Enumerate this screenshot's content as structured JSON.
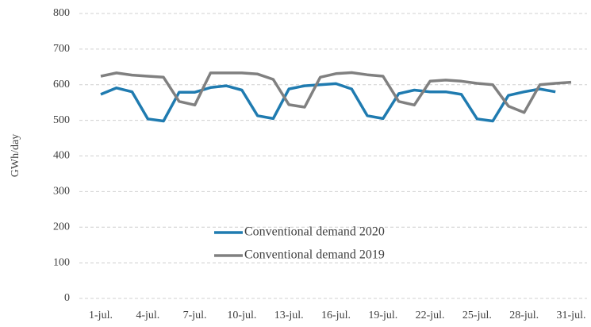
{
  "chart_data": {
    "type": "line",
    "y_label": "GWh/day",
    "categories": [
      "1-jul.",
      null,
      null,
      "4-jul.",
      null,
      null,
      "7-jul.",
      null,
      null,
      "10-jul.",
      null,
      null,
      "13-jul.",
      null,
      null,
      "16-jul.",
      null,
      null,
      "19-jul.",
      null,
      null,
      "22-jul.",
      null,
      null,
      "25-jul.",
      null,
      null,
      "28-jul.",
      null,
      null,
      "31-jul."
    ],
    "series": [
      {
        "name": "Conventional demand 2020",
        "color": "#1f7bb0",
        "values": [
          573,
          591,
          580,
          504,
          498,
          579,
          579,
          592,
          597,
          585,
          513,
          505,
          588,
          597,
          600,
          603,
          588,
          513,
          505,
          575,
          585,
          580,
          580,
          573,
          504,
          498,
          570,
          580,
          588,
          580,
          null
        ]
      },
      {
        "name": "Conventional demand 2019",
        "color": "#808080",
        "values": [
          624,
          633,
          627,
          624,
          621,
          553,
          543,
          633,
          633,
          633,
          630,
          615,
          544,
          537,
          621,
          631,
          634,
          628,
          624,
          553,
          543,
          610,
          613,
          610,
          604,
          600,
          540,
          522,
          600,
          604,
          607
        ]
      }
    ],
    "ylim": [
      0,
      800
    ],
    "yticks": [
      0,
      100,
      200,
      300,
      400,
      500,
      600,
      700,
      800
    ],
    "grid": true,
    "legend": "center"
  }
}
